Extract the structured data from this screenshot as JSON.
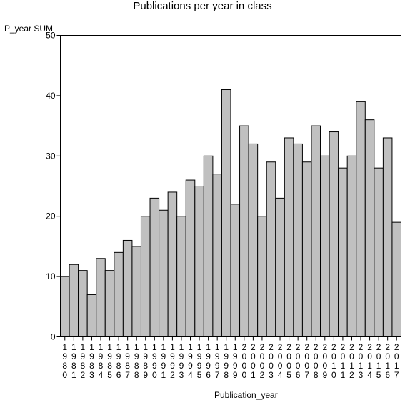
{
  "chart_data": {
    "type": "bar",
    "title": "Publications per year in class",
    "ylabel": "P_year SUM",
    "xlabel": "Publication_year",
    "ylim": [
      0,
      50
    ],
    "yticks": [
      0,
      10,
      20,
      30,
      40,
      50
    ],
    "grid": false,
    "bar_color": "#c0c0c0",
    "categories": [
      "1980",
      "1981",
      "1982",
      "1983",
      "1984",
      "1985",
      "1986",
      "1987",
      "1988",
      "1989",
      "1990",
      "1991",
      "1992",
      "1993",
      "1994",
      "1995",
      "1996",
      "1997",
      "1998",
      "1999",
      "2000",
      "2001",
      "2002",
      "2003",
      "2004",
      "2005",
      "2006",
      "2007",
      "2008",
      "2009",
      "2010",
      "2011",
      "2012",
      "2013",
      "2014",
      "2015",
      "2016",
      "2017"
    ],
    "values": [
      10,
      12,
      11,
      7,
      13,
      11,
      14,
      16,
      15,
      20,
      23,
      21,
      24,
      20,
      26,
      25,
      30,
      27,
      41,
      22,
      35,
      32,
      20,
      29,
      23,
      33,
      32,
      29,
      35,
      30,
      34,
      28,
      30,
      39,
      36,
      28,
      33,
      19
    ]
  }
}
